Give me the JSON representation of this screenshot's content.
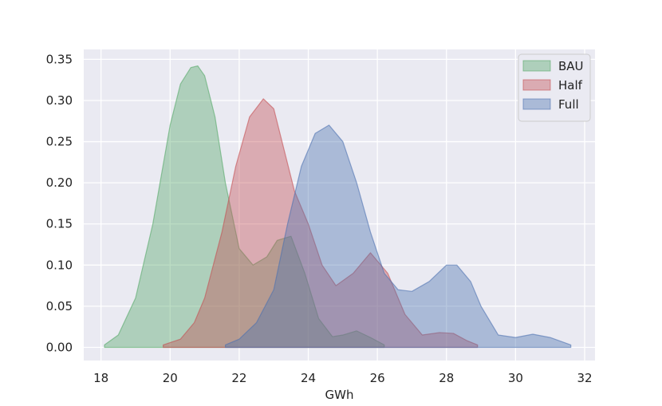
{
  "chart_data": {
    "type": "area",
    "title": "",
    "xlabel": "GWh",
    "ylabel": "",
    "xlim": [
      17.5,
      32.3
    ],
    "ylim": [
      -0.016,
      0.362
    ],
    "xticks": [
      18,
      20,
      22,
      24,
      26,
      28,
      30,
      32
    ],
    "xtick_labels": [
      "18",
      "20",
      "22",
      "24",
      "26",
      "28",
      "30",
      "32"
    ],
    "yticks": [
      0.0,
      0.05,
      0.1,
      0.15,
      0.2,
      0.25,
      0.3,
      0.35
    ],
    "ytick_labels": [
      "0.00",
      "0.05",
      "0.10",
      "0.15",
      "0.20",
      "0.25",
      "0.30",
      "0.35"
    ],
    "grid": true,
    "legend_position": "top-right",
    "series": [
      {
        "name": "BAU",
        "color": "#55a868",
        "x": [
          18.1,
          18.5,
          19.0,
          19.5,
          20.0,
          20.3,
          20.6,
          20.8,
          21.0,
          21.3,
          21.6,
          22.0,
          22.4,
          22.8,
          23.1,
          23.5,
          23.9,
          24.3,
          24.7,
          25.0,
          25.4,
          25.8,
          26.2
        ],
        "y": [
          0.003,
          0.015,
          0.06,
          0.15,
          0.27,
          0.32,
          0.34,
          0.342,
          0.33,
          0.28,
          0.2,
          0.12,
          0.1,
          0.11,
          0.13,
          0.135,
          0.09,
          0.035,
          0.013,
          0.015,
          0.02,
          0.012,
          0.003
        ]
      },
      {
        "name": "Half",
        "color": "#c44e52",
        "x": [
          19.8,
          20.3,
          20.7,
          21.0,
          21.5,
          21.9,
          22.3,
          22.7,
          23.0,
          23.3,
          23.6,
          24.0,
          24.4,
          24.8,
          25.3,
          25.8,
          26.3,
          26.8,
          27.3,
          27.8,
          28.2,
          28.6,
          28.9
        ],
        "y": [
          0.003,
          0.01,
          0.03,
          0.06,
          0.14,
          0.22,
          0.28,
          0.302,
          0.29,
          0.24,
          0.19,
          0.15,
          0.1,
          0.075,
          0.09,
          0.115,
          0.09,
          0.04,
          0.015,
          0.018,
          0.017,
          0.008,
          0.003
        ]
      },
      {
        "name": "Full",
        "color": "#4c72b0",
        "x": [
          21.6,
          22.0,
          22.5,
          23.0,
          23.4,
          23.8,
          24.2,
          24.6,
          25.0,
          25.4,
          25.8,
          26.2,
          26.6,
          27.0,
          27.5,
          28.0,
          28.3,
          28.7,
          29.0,
          29.5,
          30.0,
          30.5,
          31.0,
          31.6
        ],
        "y": [
          0.003,
          0.01,
          0.03,
          0.07,
          0.15,
          0.22,
          0.26,
          0.27,
          0.25,
          0.2,
          0.14,
          0.09,
          0.07,
          0.068,
          0.08,
          0.1,
          0.1,
          0.08,
          0.05,
          0.015,
          0.012,
          0.016,
          0.012,
          0.003
        ]
      }
    ]
  }
}
